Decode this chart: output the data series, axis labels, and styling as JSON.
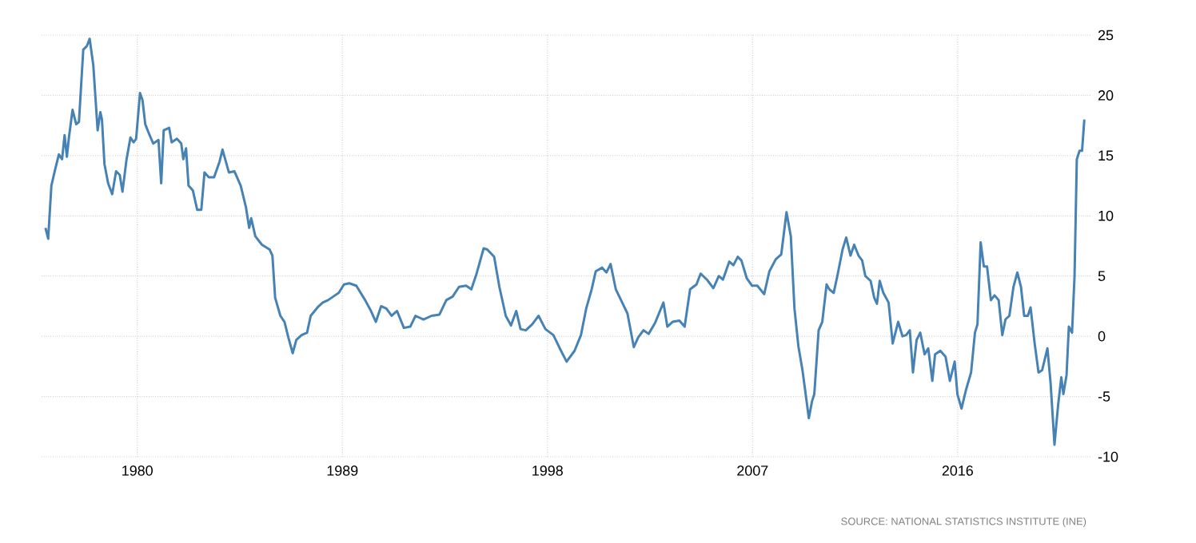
{
  "chart_data": {
    "type": "line",
    "color": "#4682b4",
    "line_style": "solid",
    "grid": true,
    "xlim": [
      1975.8,
      2021.9
    ],
    "ylim": [
      -10,
      25
    ],
    "xticks": [
      1980,
      1989,
      1998,
      2007,
      2016
    ],
    "yticks": [
      -10,
      -5,
      0,
      5,
      10,
      15,
      20,
      25
    ],
    "annotations": [
      "SOURCE: NATIONAL STATISTICS INSTITUTE (INE)"
    ],
    "x": [
      1975.97,
      1976.09,
      1976.23,
      1976.39,
      1976.56,
      1976.7,
      1976.81,
      1976.91,
      1977.0,
      1977.16,
      1977.32,
      1977.44,
      1977.63,
      1977.79,
      1977.91,
      1978.07,
      1978.26,
      1978.38,
      1978.45,
      1978.56,
      1978.72,
      1978.9,
      1979.07,
      1979.23,
      1979.35,
      1979.53,
      1979.7,
      1979.84,
      1979.95,
      1980.12,
      1980.23,
      1980.35,
      1980.54,
      1980.7,
      1980.93,
      1981.05,
      1981.16,
      1981.4,
      1981.51,
      1981.74,
      1981.93,
      1982.02,
      1982.14,
      1982.25,
      1982.44,
      1982.63,
      1982.81,
      1982.95,
      1983.14,
      1983.37,
      1983.61,
      1983.74,
      1984.02,
      1984.26,
      1984.54,
      1984.77,
      1984.91,
      1985.0,
      1985.18,
      1985.47,
      1985.81,
      1985.93,
      1986.05,
      1986.28,
      1986.46,
      1986.63,
      1986.82,
      1986.98,
      1987.21,
      1987.45,
      1987.61,
      1987.91,
      1988.14,
      1988.37,
      1988.6,
      1988.84,
      1989.07,
      1989.3,
      1989.61,
      1990.0,
      1990.23,
      1990.47,
      1990.7,
      1990.93,
      1991.16,
      1991.4,
      1991.7,
      1991.98,
      1992.21,
      1992.56,
      1992.91,
      1993.26,
      1993.56,
      1993.84,
      1994.12,
      1994.43,
      1994.66,
      1994.89,
      1995.2,
      1995.36,
      1995.66,
      1995.89,
      1996.17,
      1996.4,
      1996.63,
      1996.82,
      1997.05,
      1997.33,
      1997.61,
      1997.91,
      1998.26,
      1998.54,
      1998.84,
      1999.19,
      1999.47,
      1999.7,
      1999.94,
      2000.12,
      2000.4,
      2000.59,
      2000.77,
      2001.0,
      2001.28,
      2001.51,
      2001.79,
      2001.98,
      2002.21,
      2002.44,
      2002.72,
      2003.09,
      2003.26,
      2003.49,
      2003.79,
      2004.02,
      2004.26,
      2004.54,
      2004.72,
      2005.0,
      2005.28,
      2005.52,
      2005.7,
      2005.98,
      2006.16,
      2006.35,
      2006.51,
      2006.75,
      2006.98,
      2007.21,
      2007.51,
      2007.74,
      2008.02,
      2008.26,
      2008.49,
      2008.68,
      2008.84,
      2009.01,
      2009.19,
      2009.31,
      2009.47,
      2009.61,
      2009.71,
      2009.9,
      2010.06,
      2010.25,
      2010.37,
      2010.56,
      2010.72,
      2010.95,
      2011.11,
      2011.3,
      2011.46,
      2011.65,
      2011.81,
      2011.95,
      2012.18,
      2012.34,
      2012.46,
      2012.58,
      2012.74,
      2012.97,
      2013.15,
      2013.39,
      2013.58,
      2013.74,
      2013.9,
      2014.04,
      2014.2,
      2014.36,
      2014.55,
      2014.71,
      2014.89,
      2015.01,
      2015.24,
      2015.47,
      2015.66,
      2015.87,
      2015.99,
      2016.17,
      2016.36,
      2016.59,
      2016.76,
      2016.87,
      2017.01,
      2017.15,
      2017.29,
      2017.46,
      2017.62,
      2017.8,
      2017.96,
      2018.1,
      2018.27,
      2018.45,
      2018.62,
      2018.78,
      2018.92,
      2019.08,
      2019.2,
      2019.38,
      2019.55,
      2019.71,
      2019.94,
      2020.08,
      2020.25,
      2020.41,
      2020.55,
      2020.64,
      2020.78,
      2020.88,
      2021.02,
      2021.13,
      2021.23,
      2021.35,
      2021.46,
      2021.56
    ],
    "values": [
      9.0,
      8.1,
      12.5,
      13.8,
      15.1,
      14.7,
      16.7,
      14.9,
      16.5,
      18.8,
      17.6,
      17.8,
      23.8,
      24.1,
      24.7,
      22.5,
      17.1,
      18.6,
      18.0,
      14.3,
      12.7,
      11.8,
      13.7,
      13.4,
      12.0,
      14.7,
      16.5,
      16.1,
      16.4,
      20.2,
      19.6,
      17.6,
      16.7,
      16.0,
      16.3,
      12.7,
      17.1,
      17.3,
      16.1,
      16.4,
      16.0,
      14.7,
      15.6,
      12.5,
      12.1,
      10.5,
      10.5,
      13.6,
      13.2,
      13.2,
      14.5,
      15.5,
      13.6,
      13.7,
      12.5,
      10.7,
      9.0,
      9.8,
      8.3,
      7.6,
      7.2,
      6.7,
      3.2,
      1.7,
      1.2,
      -0.1,
      -1.4,
      -0.3,
      0.1,
      0.3,
      1.7,
      2.4,
      2.8,
      3.0,
      3.3,
      3.6,
      4.3,
      4.4,
      4.2,
      3.0,
      2.2,
      1.2,
      2.5,
      2.3,
      1.7,
      2.1,
      0.7,
      0.8,
      1.7,
      1.4,
      1.7,
      1.8,
      3.0,
      3.3,
      4.1,
      4.2,
      3.9,
      5.2,
      7.3,
      7.2,
      6.6,
      4.1,
      1.7,
      0.9,
      2.1,
      0.6,
      0.5,
      1.0,
      1.7,
      0.6,
      0.1,
      -1.0,
      -2.1,
      -1.2,
      0.1,
      2.3,
      3.9,
      5.4,
      5.7,
      5.3,
      6.0,
      3.9,
      2.8,
      1.9,
      -0.9,
      -0.1,
      0.5,
      0.2,
      1.1,
      2.8,
      0.8,
      1.2,
      1.3,
      0.8,
      3.9,
      4.3,
      5.2,
      4.7,
      4.0,
      5.0,
      4.7,
      6.2,
      5.9,
      6.6,
      6.3,
      4.8,
      4.2,
      4.2,
      3.5,
      5.4,
      6.4,
      6.8,
      10.3,
      8.3,
      2.3,
      -0.8,
      -2.8,
      -4.5,
      -6.8,
      -5.4,
      -4.8,
      0.5,
      1.2,
      4.3,
      3.9,
      3.6,
      5.0,
      7.2,
      8.2,
      6.7,
      7.6,
      6.7,
      6.3,
      5.0,
      4.6,
      3.2,
      2.7,
      4.6,
      3.6,
      2.8,
      -0.6,
      1.2,
      0.0,
      0.1,
      0.5,
      -3.0,
      -0.3,
      0.3,
      -1.5,
      -1.0,
      -3.7,
      -1.5,
      -1.2,
      -1.7,
      -3.7,
      -2.1,
      -4.8,
      -6.0,
      -4.5,
      -3.0,
      0.3,
      1.0,
      7.8,
      5.8,
      5.8,
      3.0,
      3.4,
      3.0,
      0.1,
      1.4,
      1.7,
      4.1,
      5.3,
      4.1,
      1.7,
      1.7,
      2.4,
      -0.6,
      -3.0,
      -2.8,
      -1.0,
      -3.9,
      -9.0,
      -5.7,
      -3.4,
      -4.8,
      -3.2,
      0.8,
      0.3,
      5.0,
      14.7,
      15.4,
      15.4,
      18.0
    ]
  }
}
